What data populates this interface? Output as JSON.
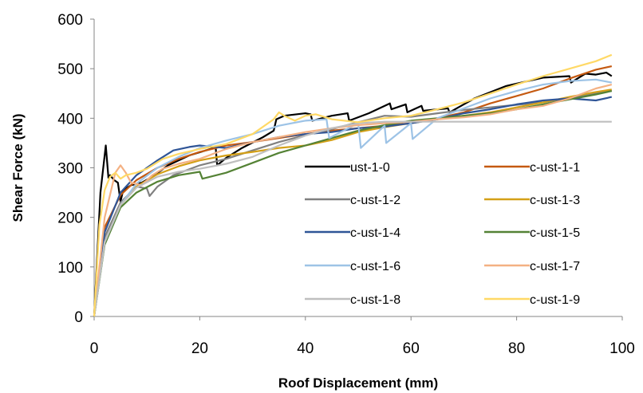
{
  "chart_data": {
    "type": "line",
    "title": "",
    "xlabel": "Roof Displacement (mm)",
    "ylabel": "Shear Force (kN)",
    "xlim": [
      0,
      100
    ],
    "ylim": [
      0,
      600
    ],
    "xticks": [
      0,
      20,
      40,
      60,
      80,
      100
    ],
    "yticks": [
      0,
      100,
      200,
      300,
      400,
      500,
      600
    ],
    "grid": false,
    "legend_position": "inside-lower-right",
    "series": [
      {
        "name": "ust-1-0",
        "color": "#000000",
        "x": [
          0,
          1.2,
          2.2,
          2.7,
          3.0,
          3.8,
          4.5,
          5.0,
          5.5,
          7.0,
          9.0,
          11.0,
          14.0,
          18.0,
          22.0,
          23.0,
          23.3,
          25.0,
          28.0,
          32.0,
          34.0,
          34.5,
          36.0,
          40.0,
          41.0,
          41.3,
          45.0,
          48.0,
          48.3,
          52.0,
          56.0,
          56.3,
          59.0,
          59.3,
          62.0,
          62.3,
          67.0,
          67.3,
          72.0,
          78.0,
          85.0,
          90.0,
          90.3,
          93.0,
          95.0,
          97.0,
          98.0
        ],
        "y": [
          0,
          250,
          345,
          280,
          285,
          275,
          270,
          232,
          255,
          265,
          270,
          282,
          305,
          325,
          338,
          342,
          305,
          320,
          340,
          362,
          375,
          398,
          405,
          410,
          408,
          395,
          405,
          410,
          395,
          410,
          430,
          418,
          428,
          412,
          425,
          415,
          420,
          412,
          440,
          465,
          482,
          485,
          472,
          490,
          488,
          492,
          485
        ]
      },
      {
        "name": "c-ust-1-1",
        "color": "#C55A11",
        "x": [
          0,
          2,
          5,
          8,
          12,
          16,
          20,
          25,
          30,
          35,
          40,
          45,
          50,
          55,
          60,
          65,
          70,
          75,
          80,
          85,
          90,
          95,
          98
        ],
        "y": [
          0,
          180,
          245,
          275,
          300,
          318,
          332,
          345,
          352,
          360,
          368,
          375,
          380,
          385,
          390,
          400,
          412,
          430,
          445,
          460,
          480,
          498,
          505
        ]
      },
      {
        "name": "c-ust-1-2",
        "color": "#808080",
        "x": [
          0,
          2,
          5,
          8,
          10,
          10.5,
          12,
          15,
          20,
          25,
          30,
          35,
          40,
          45,
          50,
          55,
          60,
          65,
          70,
          75,
          80,
          85,
          90,
          95,
          98
        ],
        "y": [
          0,
          160,
          230,
          262,
          258,
          243,
          262,
          285,
          305,
          318,
          335,
          352,
          366,
          378,
          392,
          405,
          403,
          410,
          417,
          422,
          427,
          432,
          440,
          450,
          455
        ]
      },
      {
        "name": "c-ust-1-3",
        "color": "#D4A017",
        "x": [
          0,
          2,
          5,
          8,
          12,
          16,
          20,
          25,
          30,
          35,
          40,
          45,
          50,
          55,
          60,
          65,
          70,
          75,
          80,
          85,
          90,
          95,
          98
        ],
        "y": [
          0,
          150,
          225,
          262,
          287,
          303,
          315,
          325,
          332,
          340,
          345,
          356,
          372,
          382,
          390,
          398,
          405,
          412,
          422,
          432,
          443,
          453,
          458
        ]
      },
      {
        "name": "c-ust-1-4",
        "color": "#2F5597",
        "x": [
          0,
          2,
          5,
          8,
          12,
          15,
          18,
          20,
          25,
          30,
          35,
          40,
          45,
          50,
          55,
          60,
          65,
          70,
          75,
          80,
          85,
          90,
          95,
          98
        ],
        "y": [
          0,
          170,
          250,
          285,
          315,
          335,
          342,
          345,
          340,
          352,
          362,
          368,
          372,
          380,
          383,
          390,
          398,
          410,
          418,
          428,
          436,
          440,
          436,
          443
        ]
      },
      {
        "name": "c-ust-1-5",
        "color": "#548235",
        "x": [
          0,
          2,
          5,
          8,
          12,
          16,
          20,
          20.5,
          25,
          30,
          35,
          40,
          45,
          50,
          55,
          60,
          65,
          70,
          75,
          80,
          85,
          90,
          95,
          98
        ],
        "y": [
          0,
          145,
          220,
          250,
          272,
          285,
          292,
          278,
          290,
          310,
          330,
          345,
          360,
          375,
          386,
          395,
          400,
          405,
          410,
          418,
          428,
          438,
          448,
          455
        ]
      },
      {
        "name": "c-ust-1-6",
        "color": "#9DC3E6",
        "x": [
          0,
          2,
          5,
          8,
          12,
          16,
          20,
          25,
          30,
          35,
          40,
          44,
          44.5,
          50,
          50.5,
          55,
          55.3,
          60,
          60.3,
          65,
          70,
          75,
          80,
          85,
          90,
          95,
          98
        ],
        "y": [
          0,
          150,
          225,
          268,
          300,
          322,
          340,
          355,
          368,
          385,
          395,
          398,
          360,
          390,
          340,
          385,
          350,
          390,
          358,
          400,
          420,
          440,
          455,
          468,
          475,
          478,
          472
        ]
      },
      {
        "name": "c-ust-1-7",
        "color": "#F4B183",
        "x": [
          0,
          2,
          4,
          5,
          6,
          7,
          9,
          11,
          13,
          16,
          20,
          25,
          30,
          35,
          40,
          45,
          50,
          55,
          60,
          65,
          70,
          75,
          80,
          85,
          90,
          95,
          98
        ],
        "y": [
          0,
          200,
          290,
          305,
          290,
          270,
          265,
          285,
          298,
          308,
          318,
          338,
          352,
          362,
          372,
          380,
          386,
          390,
          393,
          398,
          402,
          408,
          418,
          425,
          440,
          460,
          468
        ]
      },
      {
        "name": "c-ust-1-8",
        "color": "#BFBFBF",
        "x": [
          0,
          2,
          5,
          8,
          12,
          16,
          20,
          25,
          30,
          35,
          40,
          45,
          50,
          55,
          60,
          65,
          70,
          75,
          80,
          85,
          90,
          95,
          98
        ],
        "y": [
          0,
          150,
          225,
          260,
          282,
          292,
          298,
          308,
          322,
          345,
          365,
          380,
          390,
          393,
          393,
          393,
          393,
          393,
          393,
          393,
          393,
          393,
          393
        ]
      },
      {
        "name": "c-ust-1-9",
        "color": "#FFD966",
        "x": [
          0,
          1,
          2,
          3,
          4,
          5,
          6,
          8,
          10,
          13,
          16,
          20,
          25,
          30,
          34,
          35,
          36,
          38,
          40,
          42,
          45,
          50,
          55,
          60,
          65,
          70,
          75,
          80,
          85,
          90,
          95,
          98
        ],
        "y": [
          0,
          185,
          255,
          282,
          290,
          278,
          285,
          290,
          298,
          318,
          328,
          338,
          348,
          368,
          398,
          412,
          405,
          395,
          405,
          408,
          398,
          392,
          400,
          405,
          418,
          432,
          450,
          468,
          485,
          500,
          515,
          528
        ]
      }
    ]
  }
}
